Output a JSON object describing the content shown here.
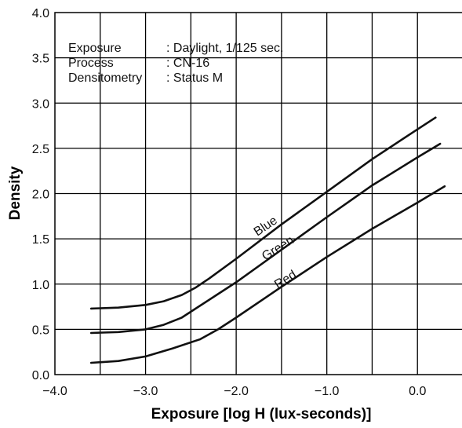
{
  "chart_data": {
    "type": "line",
    "title": "",
    "xlabel": "Exposure [log H (lux-seconds)]",
    "ylabel": "Density",
    "xlim": [
      -4.0,
      0.5
    ],
    "ylim": [
      0.0,
      4.0
    ],
    "x_ticks": [
      "−4.0",
      "−3.0",
      "−2.0",
      "−1.0",
      "0.0"
    ],
    "y_ticks": [
      "0.0",
      "0.5",
      "1.0",
      "1.5",
      "2.0",
      "2.5",
      "3.0",
      "3.5",
      "4.0"
    ],
    "grid": true,
    "notes": [
      {
        "key": "Exposure",
        "value": ": Daylight, 1/125 sec."
      },
      {
        "key": "Process",
        "value": ": CN-16"
      },
      {
        "key": "Densitometry",
        "value": ": Status M"
      }
    ],
    "series": [
      {
        "name": "Blue",
        "color": "#111111",
        "x": [
          -3.6,
          -3.3,
          -3.0,
          -2.8,
          -2.6,
          -2.45,
          -2.3,
          -2.0,
          -1.5,
          -1.0,
          -0.5,
          0.0,
          0.2
        ],
        "y": [
          0.73,
          0.74,
          0.77,
          0.81,
          0.88,
          0.96,
          1.06,
          1.28,
          1.66,
          2.02,
          2.38,
          2.71,
          2.84
        ]
      },
      {
        "name": "Green",
        "color": "#111111",
        "x": [
          -3.6,
          -3.3,
          -3.0,
          -2.8,
          -2.6,
          -2.4,
          -2.2,
          -2.0,
          -1.5,
          -1.0,
          -0.5,
          0.0,
          0.25
        ],
        "y": [
          0.46,
          0.47,
          0.5,
          0.55,
          0.63,
          0.76,
          0.89,
          1.02,
          1.38,
          1.74,
          2.09,
          2.4,
          2.55
        ]
      },
      {
        "name": "Red",
        "color": "#111111",
        "x": [
          -3.6,
          -3.3,
          -3.0,
          -2.7,
          -2.4,
          -2.2,
          -2.0,
          -1.5,
          -1.0,
          -0.5,
          0.0,
          0.3
        ],
        "y": [
          0.13,
          0.15,
          0.2,
          0.29,
          0.39,
          0.5,
          0.63,
          0.97,
          1.3,
          1.61,
          1.9,
          2.08
        ]
      }
    ]
  }
}
